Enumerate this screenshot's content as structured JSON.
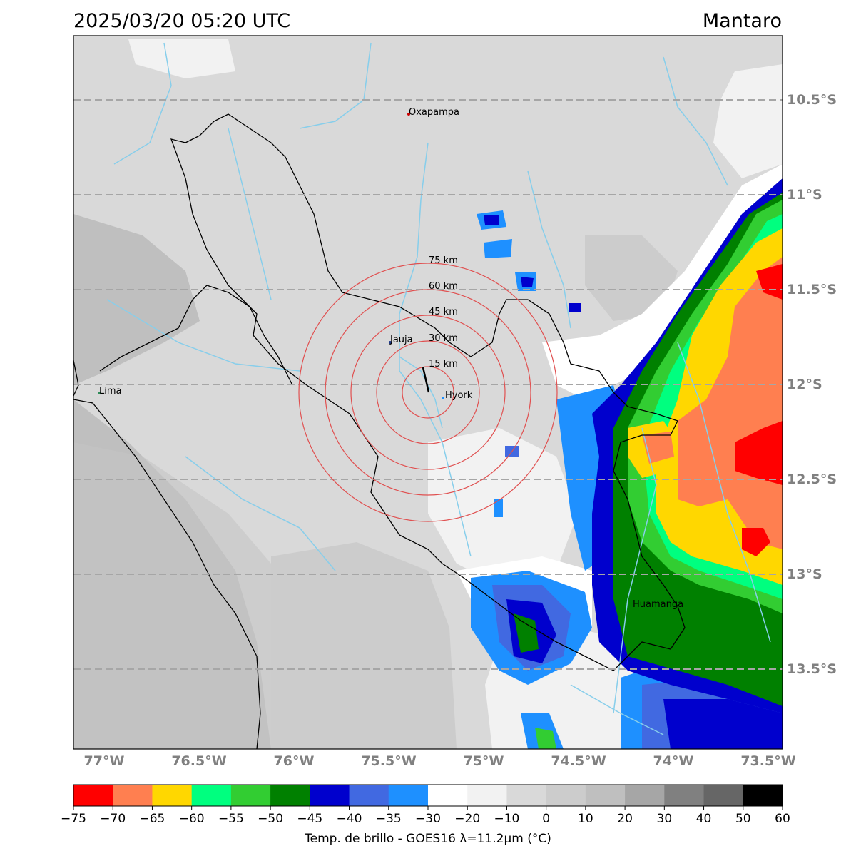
{
  "header": {
    "timestamp": "2025/03/20 05:20 UTC",
    "region": "Mantaro"
  },
  "map": {
    "lat_labels": [
      "10.5°S",
      "11°S",
      "11.5°S",
      "12°S",
      "12.5°S",
      "13°S",
      "13.5°S"
    ],
    "lon_labels": [
      "77°W",
      "76.5°W",
      "76°W",
      "75.5°W",
      "75°W",
      "74.5°W",
      "74°W",
      "73.5°W"
    ],
    "range_rings": [
      "15 km",
      "30 km",
      "45 km",
      "60 km",
      "75 km"
    ],
    "cities": {
      "oxapampa": "Oxapampa",
      "jauja": "Jauja",
      "hyork": "Hyork",
      "lima": "Lima",
      "huamanga": "Huamanga"
    }
  },
  "colorbar": {
    "label": "Temp. de brillo - GOES16 λ=11.2μm (°C)",
    "ticks": [
      "−75",
      "−70",
      "−65",
      "−60",
      "−55",
      "−50",
      "−45",
      "−40",
      "−35",
      "−30",
      "−20",
      "−10",
      "0",
      "10",
      "20",
      "30",
      "40",
      "50",
      "60"
    ],
    "colors": [
      "#ff0000",
      "#ff7f50",
      "#ffd700",
      "#00ff7f",
      "#32cd32",
      "#008000",
      "#0000cd",
      "#4169e1",
      "#1e90ff",
      "#ffffff",
      "#f2f2f2",
      "#d9d9d9",
      "#cccccc",
      "#bfbfbf",
      "#a6a6a6",
      "#808080",
      "#666666",
      "#000000"
    ]
  }
}
